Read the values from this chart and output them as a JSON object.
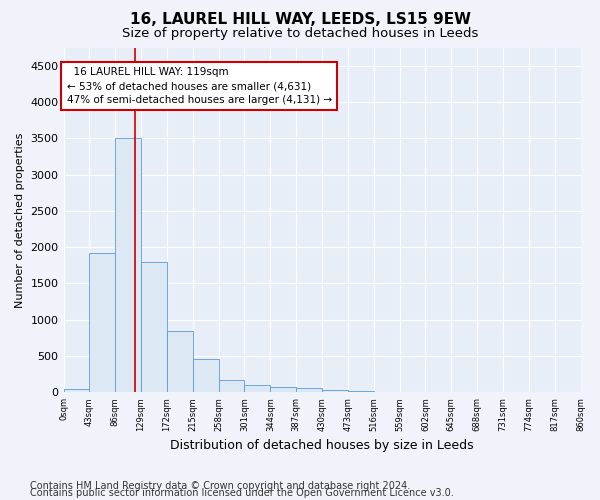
{
  "title1": "16, LAUREL HILL WAY, LEEDS, LS15 9EW",
  "title2": "Size of property relative to detached houses in Leeds",
  "xlabel": "Distribution of detached houses by size in Leeds",
  "ylabel": "Number of detached properties",
  "property_label": "16 LAUREL HILL WAY: 119sqm",
  "pct_smaller": 53,
  "n_smaller": 4631,
  "pct_larger": 47,
  "n_larger": 4131,
  "footer1": "Contains HM Land Registry data © Crown copyright and database right 2024.",
  "footer2": "Contains public sector information licensed under the Open Government Licence v3.0.",
  "bin_edges": [
    0,
    43,
    86,
    129,
    172,
    215,
    258,
    301,
    344,
    387,
    430,
    473,
    516,
    559,
    602,
    645,
    688,
    731,
    774,
    817,
    860
  ],
  "bar_heights": [
    50,
    1920,
    3500,
    1800,
    840,
    460,
    165,
    105,
    70,
    55,
    30,
    20,
    10,
    5,
    3,
    2,
    1,
    1,
    0,
    0
  ],
  "bar_color": "#dce8f3",
  "bar_edge_color": "#5b9bd5",
  "vline_x": 119,
  "vline_color": "#cc0000",
  "annotation_box_color": "#cc0000",
  "ylim": [
    0,
    4750
  ],
  "yticks": [
    0,
    500,
    1000,
    1500,
    2000,
    2500,
    3000,
    3500,
    4000,
    4500
  ],
  "bg_color": "#f0f4fa",
  "plot_bg_color": "#e8eef8",
  "grid_color": "#ffffff",
  "title1_fontsize": 11,
  "title2_fontsize": 9.5,
  "xlabel_fontsize": 9,
  "ylabel_fontsize": 8,
  "footer_fontsize": 7,
  "annot_fontsize": 7.5
}
